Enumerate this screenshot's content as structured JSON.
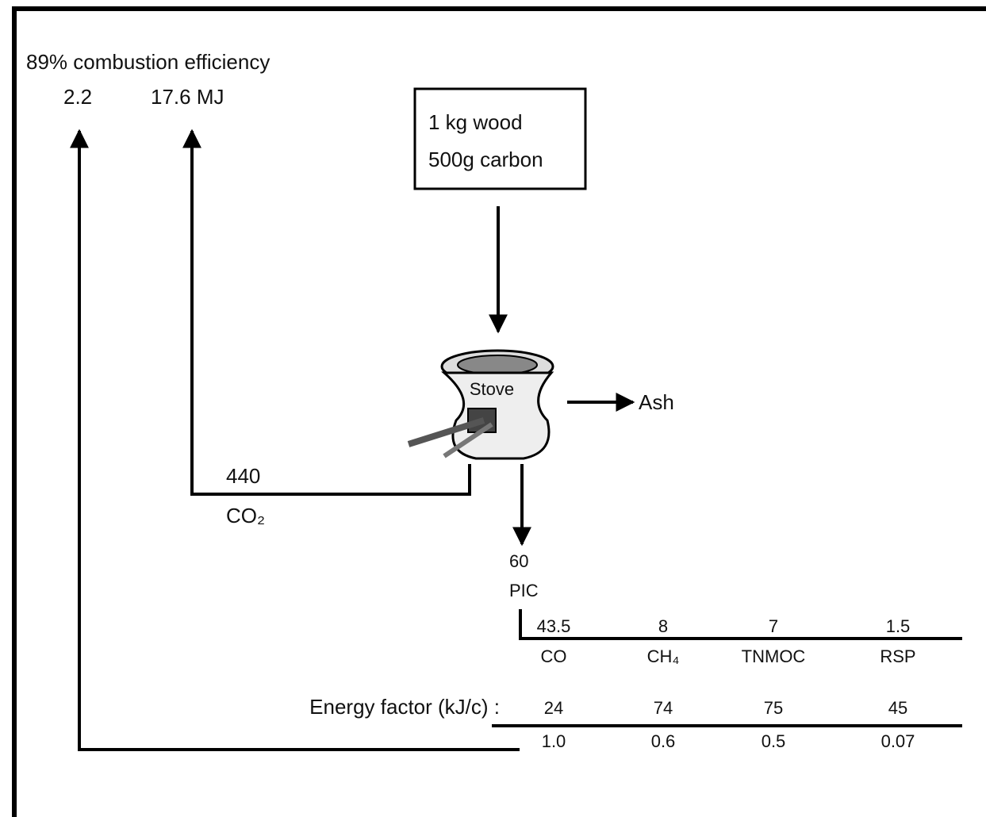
{
  "efficiency": {
    "label": "89% combustion efficiency",
    "energy_ratio": "2.2",
    "energy": "17.6 MJ"
  },
  "input": {
    "line1": "1 kg  wood",
    "line2": "500g carbon"
  },
  "stove": "Stove",
  "ash": "Ash",
  "co2": {
    "value": "440",
    "label": "CO₂"
  },
  "pic": {
    "value": "60",
    "label": "PIC"
  },
  "energy_factor_label": "Energy factor (kJ/c) :",
  "table": {
    "columns": [
      {
        "emission": "43.5",
        "name": "CO",
        "factor": "24",
        "energy": "1.0"
      },
      {
        "emission": "8",
        "name": "CH₄",
        "factor": "74",
        "energy": "0.6"
      },
      {
        "emission": "7",
        "name": "TNMOC",
        "factor": "75",
        "energy": "0.5"
      },
      {
        "emission": "1.5",
        "name": "RSP",
        "factor": "45",
        "energy": "0.07"
      }
    ]
  }
}
